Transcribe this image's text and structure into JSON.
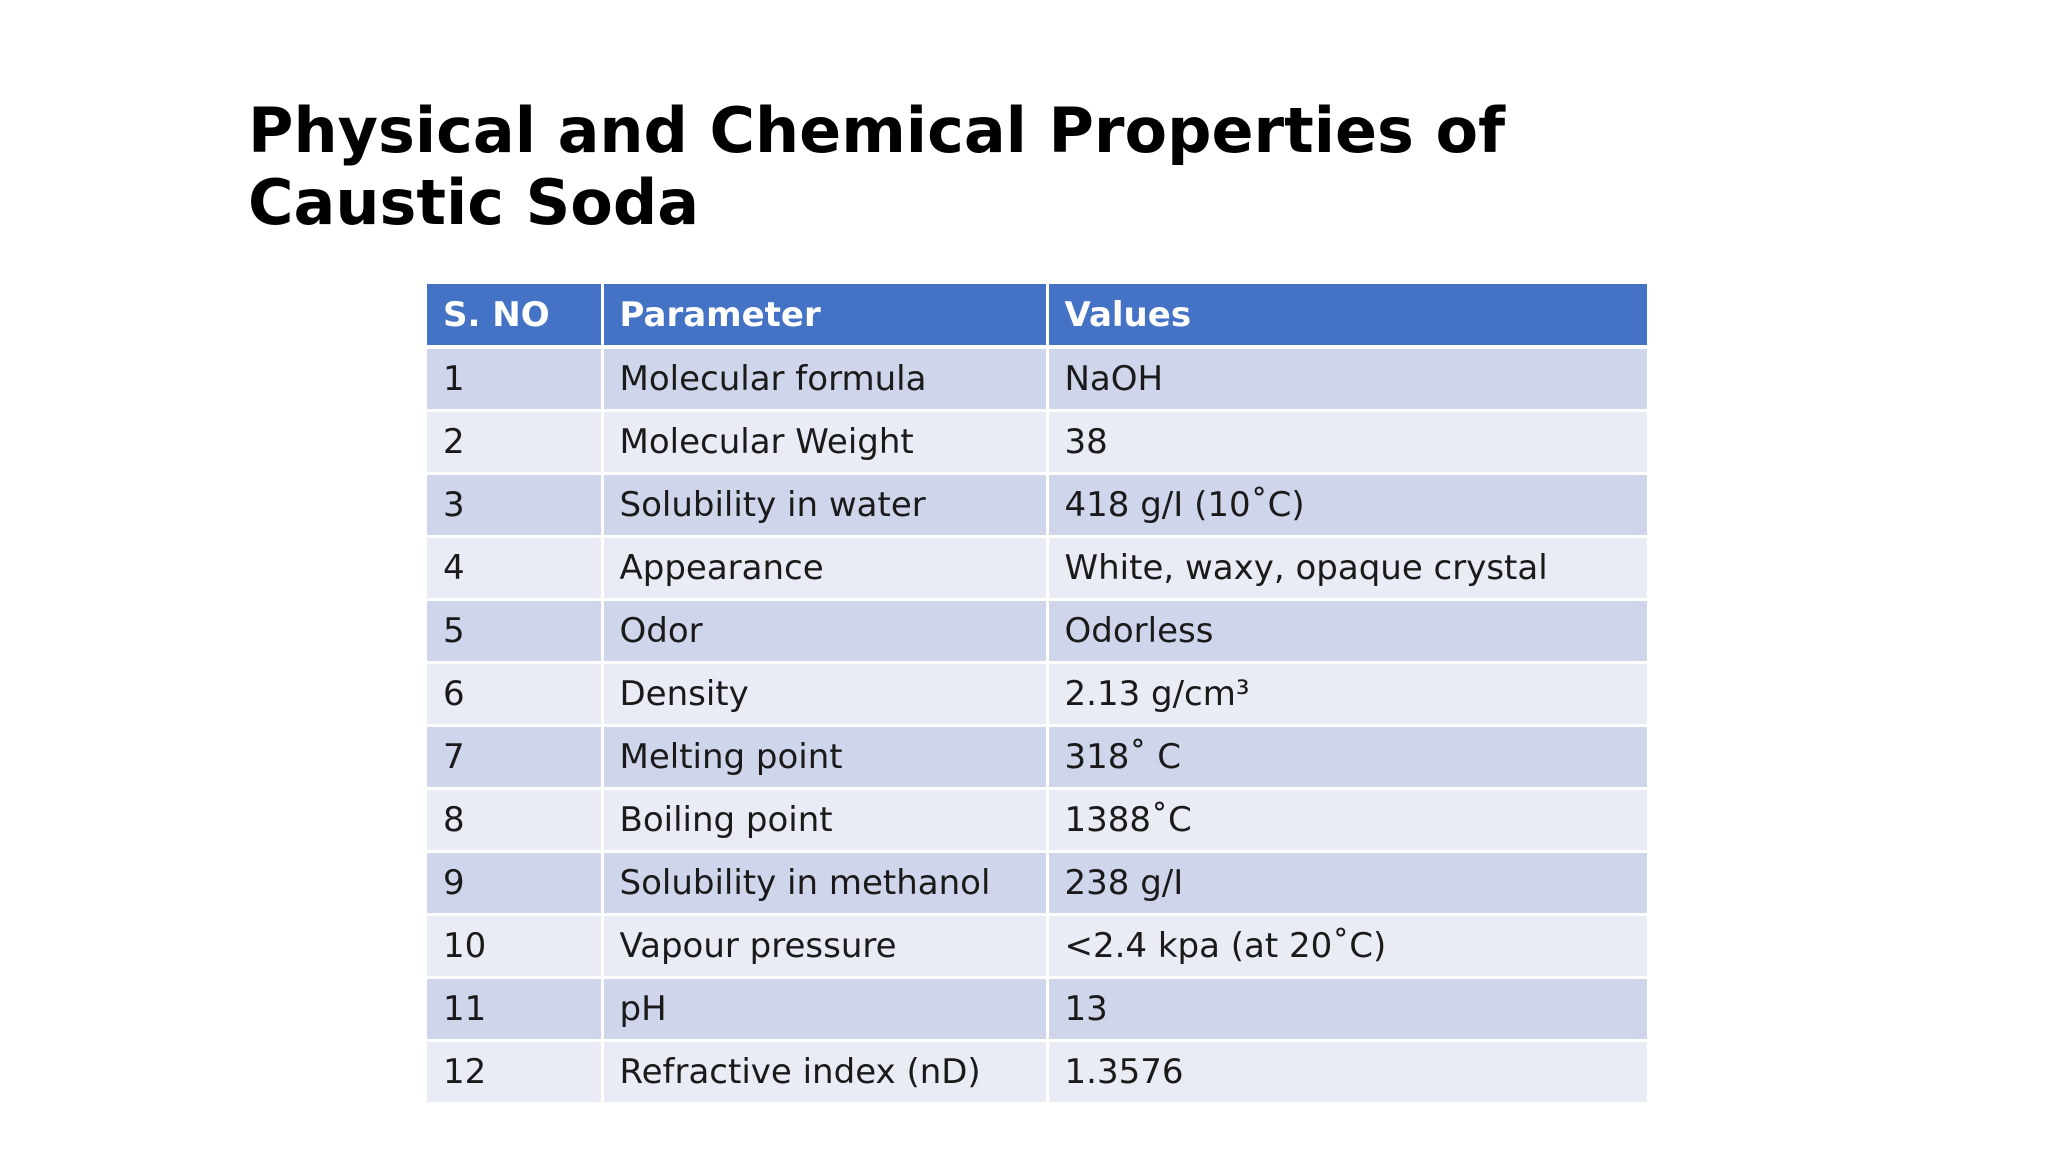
{
  "slide": {
    "title_line1": "Physical and Chemical Properties of",
    "title_line2": "Caustic Soda"
  },
  "table": {
    "headers": [
      "S. NO",
      "Parameter",
      "Values"
    ],
    "rows": [
      [
        "1",
        "Molecular formula",
        "NaOH"
      ],
      [
        "2",
        "Molecular Weight",
        "38"
      ],
      [
        "3",
        "Solubility in water",
        "418 g/I (10˚C)"
      ],
      [
        "4",
        "Appearance",
        "White, waxy, opaque crystal"
      ],
      [
        "5",
        "Odor",
        "Odorless"
      ],
      [
        "6",
        "Density",
        "2.13 g/cm³"
      ],
      [
        "7",
        "Melting point",
        "318˚ C"
      ],
      [
        "8",
        "Boiling point",
        "1388˚C"
      ],
      [
        "9",
        "Solubility in methanol",
        "238 g/I"
      ],
      [
        "10",
        "Vapour pressure",
        "<2.4 kpa (at 20˚C)"
      ],
      [
        "11",
        "pH",
        "13"
      ],
      [
        "12",
        "Refractive index (nD)",
        "1.3576"
      ]
    ]
  },
  "colors": {
    "header_bg": "#4472c4",
    "row_odd_bg": "#cfd5ea",
    "row_even_bg": "#e9ebf5"
  }
}
